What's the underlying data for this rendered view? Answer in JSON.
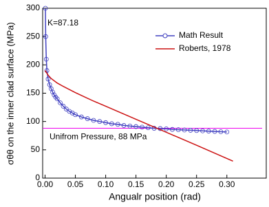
{
  "chart_data": {
    "type": "line",
    "x_label": "Angualr position (rad)",
    "y_label": "σθθ on the inner clad surface (MPa)",
    "xlim": [
      -0.004,
      0.365
    ],
    "ylim": [
      0,
      300
    ],
    "xticks": [
      {
        "value": 0,
        "label": "0.00"
      },
      {
        "value": 0.05,
        "label": "0.05"
      },
      {
        "value": 0.1,
        "label": "0.10"
      },
      {
        "value": 0.15,
        "label": "0.15"
      },
      {
        "value": 0.2,
        "label": "0.20"
      },
      {
        "value": 0.25,
        "label": "0.25"
      },
      {
        "value": 0.3,
        "label": "0.30"
      }
    ],
    "yticks": [
      0,
      50,
      100,
      150,
      200,
      250,
      300
    ],
    "legend": "upper right",
    "series": [
      {
        "name": "Math Result",
        "color": "#4040c0",
        "marker": "circle",
        "x": [
          0.0005,
          0.001,
          0.002,
          0.003,
          0.005,
          0.0075,
          0.01,
          0.0125,
          0.015,
          0.0175,
          0.02,
          0.025,
          0.03,
          0.035,
          0.04,
          0.045,
          0.05,
          0.06,
          0.07,
          0.08,
          0.09,
          0.1,
          0.11,
          0.12,
          0.13,
          0.14,
          0.15,
          0.16,
          0.17,
          0.18,
          0.19,
          0.2,
          0.21,
          0.22,
          0.23,
          0.24,
          0.25,
          0.26,
          0.27,
          0.28,
          0.29,
          0.3
        ],
        "values": [
          300,
          250,
          210,
          190,
          175,
          165,
          158,
          152,
          147,
          143,
          140,
          133,
          127,
          122,
          118,
          115,
          112,
          108,
          105,
          102,
          100,
          98,
          96,
          95,
          93,
          92,
          91,
          90,
          89,
          88,
          87.5,
          87,
          86,
          85.5,
          85,
          84.5,
          84,
          83.5,
          83,
          82.5,
          82,
          81.5
        ]
      },
      {
        "name": "Roberts, 1978",
        "color": "#cc1111",
        "marker": "none",
        "x": [
          0,
          0.005,
          0.01,
          0.02,
          0.03,
          0.05,
          0.08,
          0.1,
          0.15,
          0.2,
          0.25,
          0.31
        ],
        "values": [
          190,
          182,
          176,
          168,
          162,
          151,
          136,
          127,
          104,
          81,
          58,
          30
        ]
      }
    ],
    "reference_line": {
      "value": 88,
      "color": "#ee00ee",
      "label": "Unifrom Pressure, 88 MPa"
    },
    "annotation": {
      "text": "K=87.18",
      "color": "#2020b0"
    }
  }
}
